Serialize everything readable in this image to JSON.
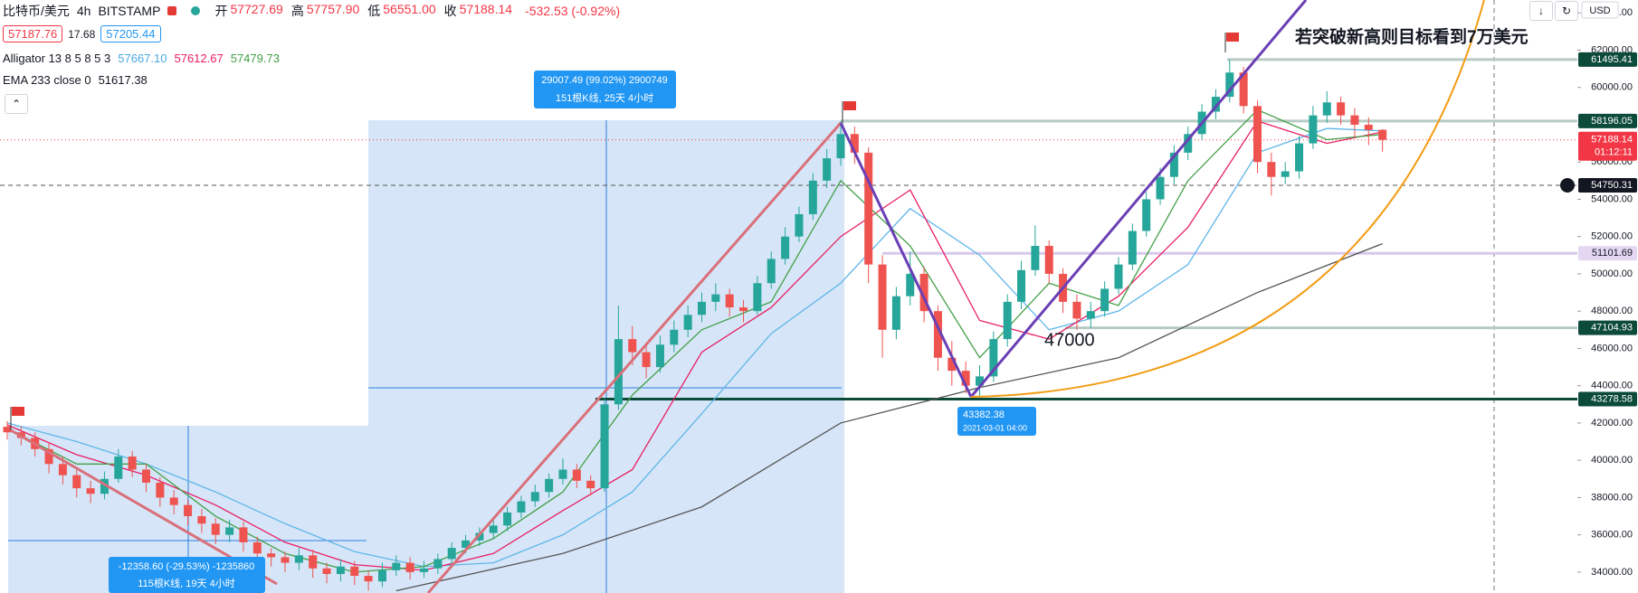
{
  "header": {
    "symbol": "比特币/美元",
    "interval": "4h",
    "exchange": "BITSTAMP",
    "ohlc": [
      {
        "label": "开",
        "value": "57727.69"
      },
      {
        "label": "高",
        "value": "57757.90"
      },
      {
        "label": "低",
        "value": "56551.00"
      },
      {
        "label": "收",
        "value": "57188.14"
      }
    ],
    "change": "-532.53 (-0.92%)"
  },
  "quote": {
    "bid": "57187.76",
    "spread": "17.68",
    "ask": "57205.44"
  },
  "indicators": [
    {
      "label": "Alligator 13 8 5 8 5 3",
      "values": [
        "57667.10",
        "57612.67",
        "57479.73"
      ],
      "colors": [
        "#4aa8e0",
        "#e91e63",
        "#43a047"
      ]
    },
    {
      "label": "EMA 233 close 0",
      "values": [
        "51617.38"
      ],
      "colors": [
        "#131722"
      ]
    }
  ],
  "chart_data": {
    "type": "candlestick",
    "up_color": "#26a69a",
    "down_color": "#ef5350",
    "open": [
      41800,
      41500,
      41200,
      40600,
      39800,
      39200,
      38500,
      38200,
      39000,
      40200,
      39500,
      38800,
      38000,
      37600,
      37000,
      36600,
      36000,
      36400,
      35600,
      35000,
      34800,
      34500,
      34900,
      34200,
      33900,
      34300,
      33800,
      33500,
      34100,
      34500,
      34000,
      34200,
      34700,
      35300,
      35700,
      36100,
      36500,
      37200,
      37800,
      38300,
      39000,
      39500,
      38900,
      38500,
      43000,
      46500,
      45800,
      45000,
      46200,
      47000,
      47800,
      48500,
      48900,
      48200,
      48000,
      49500,
      50800,
      52000,
      53200,
      55000,
      56200,
      57500,
      56500,
      50500,
      47000,
      48800,
      50000,
      48000,
      45500,
      44800,
      44000,
      44500,
      46500,
      48500,
      50200,
      51500,
      50000,
      48500,
      47600,
      48000,
      49200,
      50500,
      52300,
      54000,
      55200,
      56500,
      57500,
      58700,
      59500,
      60800,
      59000,
      56000,
      55200,
      55500,
      57000,
      58500,
      59200,
      58500,
      58000,
      57727.69
    ],
    "high": [
      42100,
      41800,
      41500,
      40900,
      40200,
      39600,
      38900,
      39400,
      40600,
      40500,
      39800,
      39100,
      38400,
      37900,
      37400,
      36900,
      36800,
      36700,
      35900,
      35300,
      35100,
      35300,
      35200,
      34500,
      34700,
      34600,
      34100,
      34500,
      34900,
      34800,
      34600,
      35000,
      35600,
      36000,
      36400,
      36900,
      37500,
      38100,
      38700,
      39300,
      40100,
      39800,
      39200,
      43300,
      48300,
      47200,
      46300,
      46700,
      47500,
      48300,
      49000,
      49500,
      49200,
      48600,
      49900,
      51200,
      52500,
      53600,
      55400,
      56700,
      58196,
      57900,
      56800,
      51000,
      49300,
      51200,
      50400,
      48300,
      46400,
      45300,
      45100,
      46900,
      48900,
      50700,
      52600,
      51800,
      50300,
      48900,
      48500,
      49600,
      50900,
      52700,
      54400,
      55700,
      56900,
      57900,
      59100,
      59900,
      61495,
      61100,
      59300,
      56500,
      56000,
      57400,
      59000,
      59800,
      59500,
      58900,
      58400,
      57757.9
    ],
    "low": [
      41100,
      40800,
      40200,
      39300,
      38700,
      38000,
      37700,
      37900,
      38800,
      39100,
      38300,
      37500,
      37100,
      36500,
      36100,
      35500,
      35600,
      35100,
      34500,
      34300,
      34000,
      34100,
      33700,
      33400,
      33500,
      33300,
      33000,
      33200,
      33800,
      33600,
      33700,
      33900,
      34400,
      35000,
      35400,
      35800,
      36200,
      36900,
      37500,
      38000,
      38700,
      38500,
      38100,
      38300,
      42700,
      45100,
      44400,
      44700,
      45800,
      46600,
      47400,
      48000,
      47700,
      47400,
      47800,
      49200,
      50500,
      51700,
      52900,
      54600,
      55800,
      55900,
      49500,
      45500,
      46500,
      48300,
      47400,
      44800,
      44000,
      43600,
      43382.38,
      44200,
      46100,
      48100,
      49900,
      49500,
      47900,
      47000,
      47100,
      47700,
      48900,
      50200,
      52000,
      53700,
      54800,
      56100,
      57200,
      58300,
      59200,
      58600,
      55400,
      54200,
      54800,
      55100,
      56700,
      58100,
      58000,
      57300,
      56900,
      56551.0
    ],
    "close": [
      41500,
      41200,
      40600,
      39800,
      39200,
      38500,
      38200,
      39000,
      40200,
      39500,
      38800,
      38000,
      37600,
      37000,
      36600,
      36000,
      36400,
      35600,
      35000,
      34800,
      34500,
      34900,
      34200,
      33900,
      34300,
      33800,
      33500,
      34100,
      34500,
      34000,
      34200,
      34700,
      35300,
      35700,
      36100,
      36500,
      37200,
      37800,
      38300,
      39000,
      39500,
      38900,
      38500,
      43000,
      46500,
      45800,
      45000,
      46200,
      47000,
      47800,
      48500,
      48900,
      48200,
      48000,
      49500,
      50800,
      52000,
      53200,
      55000,
      56200,
      57500,
      56500,
      50500,
      47000,
      48800,
      50000,
      48000,
      45500,
      44800,
      44000,
      44500,
      46500,
      48500,
      50200,
      51500,
      50000,
      48500,
      47600,
      48000,
      49200,
      50500,
      52300,
      54000,
      55200,
      56500,
      57500,
      58700,
      59500,
      60800,
      59000,
      56000,
      55200,
      55500,
      57000,
      58500,
      59200,
      58500,
      58000,
      57720.67,
      57188.14
    ],
    "series": [
      {
        "color": "#5fb6e8",
        "x": [
          0,
          5,
          10,
          15,
          20,
          25,
          30,
          35,
          40,
          45,
          50,
          55,
          60,
          65,
          70,
          75,
          80,
          85,
          90,
          95,
          99
        ],
        "values": [
          42000,
          41000,
          39800,
          38300,
          36600,
          35100,
          34300,
          34500,
          36000,
          38300,
          42500,
          46800,
          49500,
          53500,
          51000,
          47000,
          48000,
          50500,
          56500,
          57800,
          57667.1
        ]
      },
      {
        "color": "#e91e63",
        "x": [
          0,
          5,
          10,
          15,
          20,
          25,
          30,
          35,
          40,
          45,
          50,
          55,
          60,
          65,
          70,
          75,
          80,
          85,
          90,
          95,
          99
        ],
        "values": [
          41900,
          40300,
          39200,
          37600,
          35600,
          34400,
          34100,
          35000,
          37300,
          39500,
          45800,
          48200,
          52000,
          54500,
          47500,
          46500,
          48800,
          52500,
          58200,
          57000,
          57612.67
        ]
      },
      {
        "color": "#43a047",
        "x": [
          0,
          5,
          10,
          15,
          20,
          25,
          30,
          35,
          40,
          45,
          50,
          55,
          60,
          65,
          70,
          75,
          80,
          85,
          90,
          95,
          99
        ],
        "values": [
          41700,
          39800,
          39800,
          37000,
          35000,
          34000,
          34300,
          35800,
          38300,
          43500,
          47000,
          48500,
          55000,
          51500,
          45500,
          49500,
          48300,
          55000,
          58800,
          57200,
          57479.73
        ]
      },
      {
        "color": "#555555",
        "x": [
          28,
          40,
          50,
          60,
          70,
          80,
          90,
          99
        ],
        "values": [
          33000,
          35000,
          37500,
          42000,
          43900,
          45500,
          49000,
          51617.38
        ]
      }
    ],
    "ylim": [
      32880,
      64690
    ],
    "yticks": [
      {
        "value": 34000,
        "label": "34000.00"
      },
      {
        "value": 36000,
        "label": "36000.00"
      },
      {
        "value": 38000,
        "label": "38000.00"
      },
      {
        "value": 40000,
        "label": "40000.00"
      },
      {
        "value": 42000,
        "label": "42000.00"
      },
      {
        "value": 44000,
        "label": "44000.00"
      },
      {
        "value": 46000,
        "label": "46000.00"
      },
      {
        "value": 48000,
        "label": "48000.00"
      },
      {
        "value": 50000,
        "label": "50000.00"
      },
      {
        "value": 52000,
        "label": "52000.00"
      },
      {
        "value": 54000,
        "label": "54000.00"
      },
      {
        "value": 56000,
        "label": "56000.00"
      },
      {
        "value": 58000,
        "label": "58000.00"
      },
      {
        "value": 60000,
        "label": "60000.00"
      },
      {
        "value": 62000,
        "label": "62000.00"
      },
      {
        "value": 64000,
        "label": "64000.00"
      }
    ],
    "currency": "USD",
    "levels": [
      {
        "value": 61495.41,
        "color": "#b7cbc4",
        "label_color": "#0c4a3a",
        "text_color": "#ffffff"
      },
      {
        "value": 58196.05,
        "color": "#b7cbc4",
        "label_color": "#0c4a3a",
        "text_color": "#ffffff"
      },
      {
        "value": 54750.31,
        "color": "#555555",
        "label_color": "#131722",
        "text_color": "#ffffff",
        "dashed": true
      },
      {
        "value": 51101.69,
        "color": "#d8c8ec",
        "label_color": "#e3d7f2",
        "text_color": "#131722"
      },
      {
        "value": 47104.93,
        "color": "#b7cbc4",
        "label_color": "#0c4a3a",
        "text_color": "#ffffff"
      },
      {
        "value": 43278.58,
        "color": "#0c4a3a",
        "label_color": "#0c4a3a",
        "text_color": "#ffffff"
      }
    ],
    "last_price": {
      "value": 57188.14,
      "countdown": "01:12:11",
      "color": "#f23645"
    },
    "annotations": {
      "target": "若突破新高则目标看到7万美元",
      "support": "47000"
    },
    "measures": [
      {
        "line1": "29007.49 (99.02%) 2900749",
        "line2": "151根K线, 25天 4小时"
      },
      {
        "line1": "-12358.60 (-29.53%) -1235860",
        "line2": "115根K线, 19天 4小时"
      }
    ],
    "low_label": {
      "price": "43382.38",
      "time": "2021-03-01 04:00"
    }
  }
}
